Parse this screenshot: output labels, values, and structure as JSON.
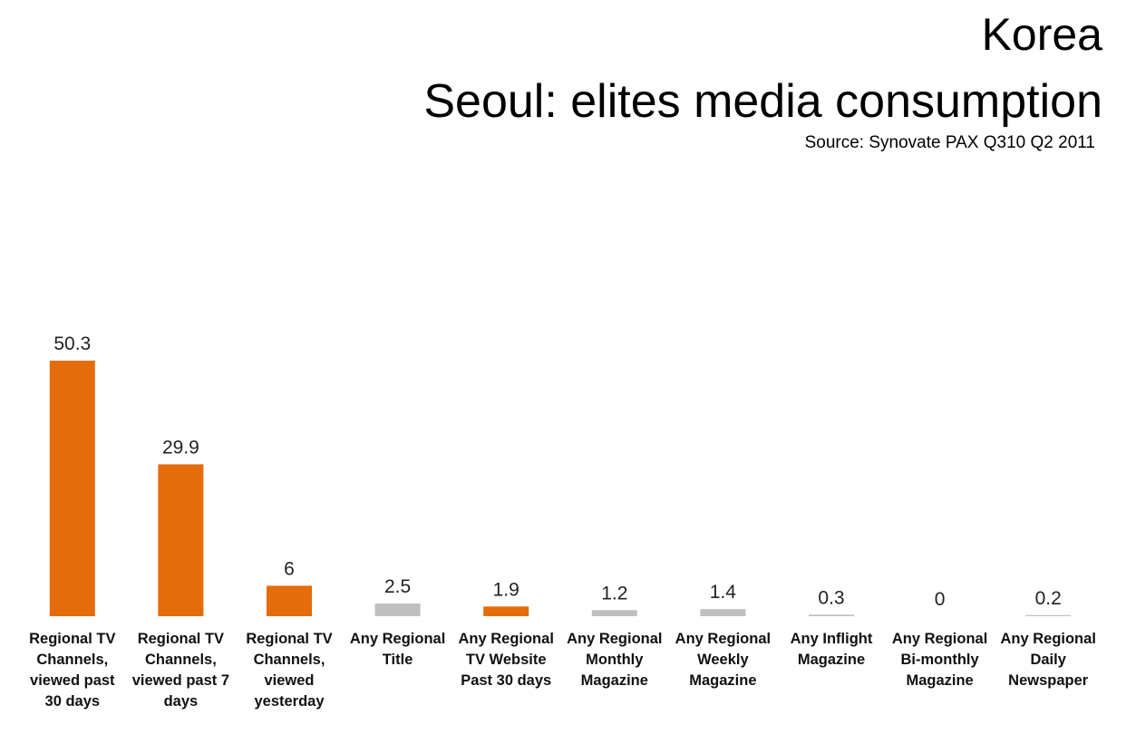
{
  "header": {
    "title_line1": "Korea",
    "title_line2": "Seoul: elites media consumption",
    "source": "Source: Synovate PAX Q310 Q2 2011"
  },
  "colors": {
    "orange": "#E46C0A",
    "grey": "#BFBFBF"
  },
  "chart_data": {
    "type": "bar",
    "title": "Seoul: elites media consumption",
    "xlabel": "",
    "ylabel": "",
    "grid": false,
    "legend": "none",
    "categories": [
      "Regional TV Channels, viewed past 30 days",
      "Regional TV Channels, viewed past 7 days",
      "Regional TV Channels, viewed yesterday",
      "Any Regional Title",
      "Any Regional TV Website Past 30 days",
      "Any Regional Monthly Magazine",
      "Any Regional Weekly Magazine",
      "Any Inflight Magazine",
      "Any Regional Bi-monthly Magazine",
      "Any Regional Daily Newspaper"
    ],
    "category_lines": [
      [
        "Regional TV",
        "Channels,",
        "viewed past",
        "30 days"
      ],
      [
        "Regional TV",
        "Channels,",
        "viewed past 7",
        "days"
      ],
      [
        "Regional TV",
        "Channels,",
        "viewed",
        "yesterday"
      ],
      [
        "Any Regional",
        "Title"
      ],
      [
        "Any Regional",
        "TV Website",
        "Past 30 days"
      ],
      [
        "Any Regional",
        "Monthly",
        "Magazine"
      ],
      [
        "Any Regional",
        "Weekly",
        "Magazine"
      ],
      [
        "Any Inflight",
        "Magazine"
      ],
      [
        "Any Regional",
        "Bi-monthly",
        "Magazine"
      ],
      [
        "Any Regional",
        "Daily",
        "Newspaper"
      ]
    ],
    "values": [
      50.3,
      29.9,
      6,
      2.5,
      1.9,
      1.2,
      1.4,
      0.3,
      0,
      0.2
    ],
    "value_labels": [
      "50.3",
      "29.9",
      "6",
      "2.5",
      "1.9",
      "1.2",
      "1.4",
      "0.3",
      "0",
      "0.2"
    ],
    "bar_colors": [
      "orange",
      "orange",
      "orange",
      "grey",
      "orange",
      "grey",
      "grey",
      "grey",
      "grey",
      "grey"
    ],
    "ylim": [
      0,
      50.3
    ]
  }
}
